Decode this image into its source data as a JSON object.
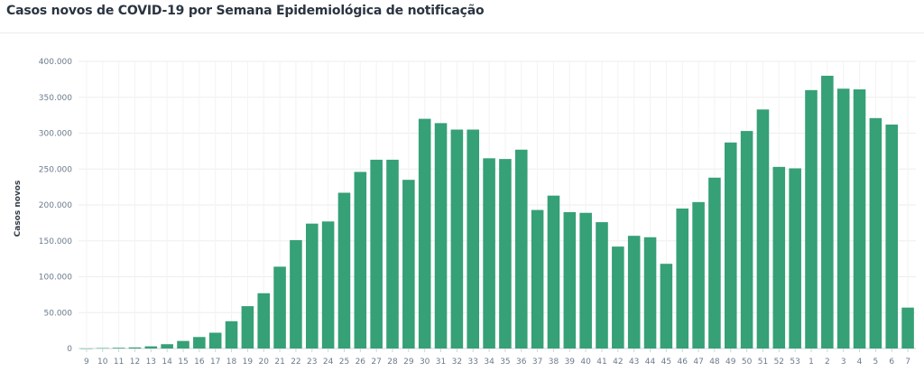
{
  "title": "Casos novos de COVID-19 por Semana Epidemiológica de notificação",
  "chart_data": {
    "type": "bar",
    "title": "Casos novos de COVID-19 por Semana Epidemiológica de notificação",
    "xlabel": "",
    "ylabel": "Casos novos",
    "ylim": [
      0,
      400000
    ],
    "yticks": [
      0,
      50000,
      100000,
      150000,
      200000,
      250000,
      300000,
      350000,
      400000
    ],
    "ytick_labels": [
      "0",
      "50.000",
      "100.000",
      "150.000",
      "200.000",
      "250.000",
      "300.000",
      "350.000",
      "400.000"
    ],
    "grid": true,
    "bar_color": "#36a077",
    "categories": [
      "9",
      "10",
      "11",
      "12",
      "13",
      "14",
      "15",
      "16",
      "17",
      "18",
      "19",
      "20",
      "21",
      "22",
      "23",
      "24",
      "25",
      "26",
      "27",
      "28",
      "29",
      "30",
      "31",
      "32",
      "33",
      "34",
      "35",
      "36",
      "37",
      "38",
      "39",
      "40",
      "41",
      "42",
      "43",
      "44",
      "45",
      "46",
      "47",
      "48",
      "49",
      "50",
      "51",
      "52",
      "53",
      "1",
      "2",
      "3",
      "4",
      "5",
      "6",
      "7"
    ],
    "values": [
      100,
      600,
      1000,
      1500,
      3000,
      6000,
      10500,
      16000,
      22000,
      38000,
      59000,
      77000,
      114000,
      151000,
      174000,
      177000,
      217000,
      246000,
      263000,
      263000,
      235000,
      320000,
      314000,
      305000,
      305000,
      265000,
      264000,
      277000,
      193000,
      213000,
      190000,
      189000,
      176000,
      142000,
      157000,
      155000,
      118000,
      195000,
      204000,
      238000,
      287000,
      303000,
      333000,
      253000,
      251000,
      360000,
      380000,
      362000,
      361000,
      321000,
      312000,
      57000
    ]
  }
}
